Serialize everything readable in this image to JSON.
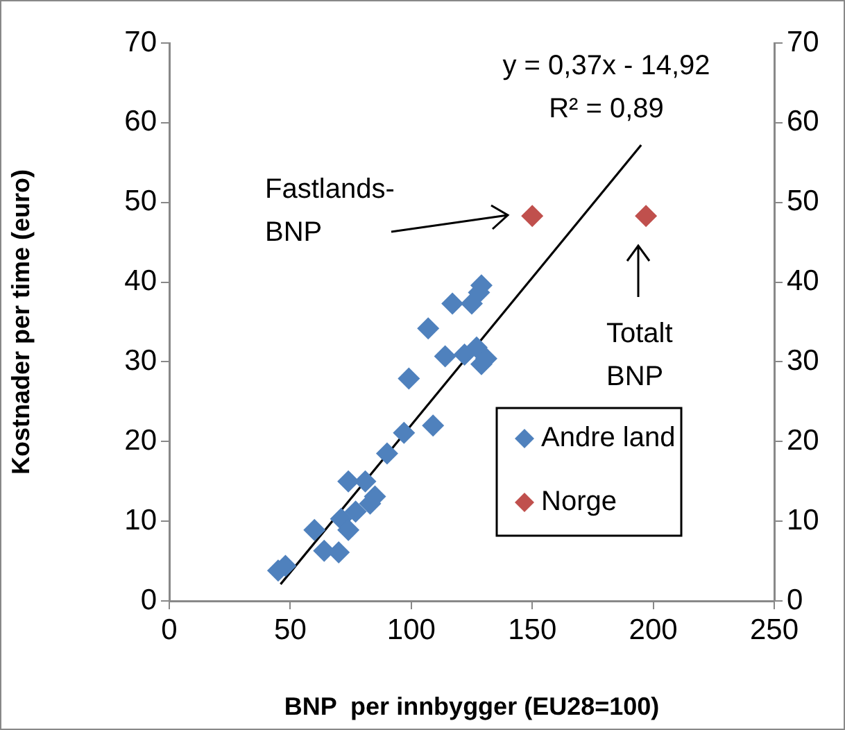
{
  "chart_data": {
    "type": "scatter",
    "xlabel": "BNP  per innbygger (EU28=100)",
    "ylabel": "Kostnader per time (euro)",
    "xlim": [
      0,
      250
    ],
    "xticks": [
      0,
      50,
      100,
      150,
      200,
      250
    ],
    "ylim": [
      0,
      70
    ],
    "yticks": [
      0,
      10,
      20,
      30,
      40,
      50,
      60,
      70
    ],
    "y2lim": [
      0,
      70
    ],
    "y2ticks": [
      0,
      10,
      20,
      30,
      40,
      50,
      60,
      70
    ],
    "grid": false,
    "legend": "bottom right",
    "marker": "diamond",
    "series": [
      {
        "name": "Andre land",
        "color": "#4f81bd",
        "x": [
          45,
          48,
          60,
          64,
          70,
          71,
          74,
          74,
          77,
          81,
          83,
          85,
          90,
          97,
          99,
          107,
          109,
          114,
          117,
          122,
          125,
          127,
          128,
          129,
          129,
          131
        ],
        "values": [
          3.8,
          4.4,
          8.9,
          6.3,
          6.1,
          10.3,
          8.9,
          15.0,
          11.2,
          15.0,
          12.2,
          13.1,
          18.5,
          21.1,
          27.9,
          34.2,
          22.0,
          30.7,
          37.3,
          30.9,
          37.3,
          31.8,
          38.7,
          39.6,
          29.7,
          30.4
        ]
      },
      {
        "name": "Norge",
        "color": "#c0504d",
        "x": [
          150,
          197
        ],
        "values": [
          48.3,
          48.3
        ]
      },
      {
        "type": "line",
        "color": "#000000",
        "marker": "none",
        "x": [
          46,
          195
        ],
        "values": [
          2.1,
          57.2
        ]
      }
    ],
    "annotations": [
      "y = 0,37x - 14,92",
      "R² = 0,89",
      "Fastlands-\nBNP",
      "Totalt\nBNP"
    ]
  }
}
